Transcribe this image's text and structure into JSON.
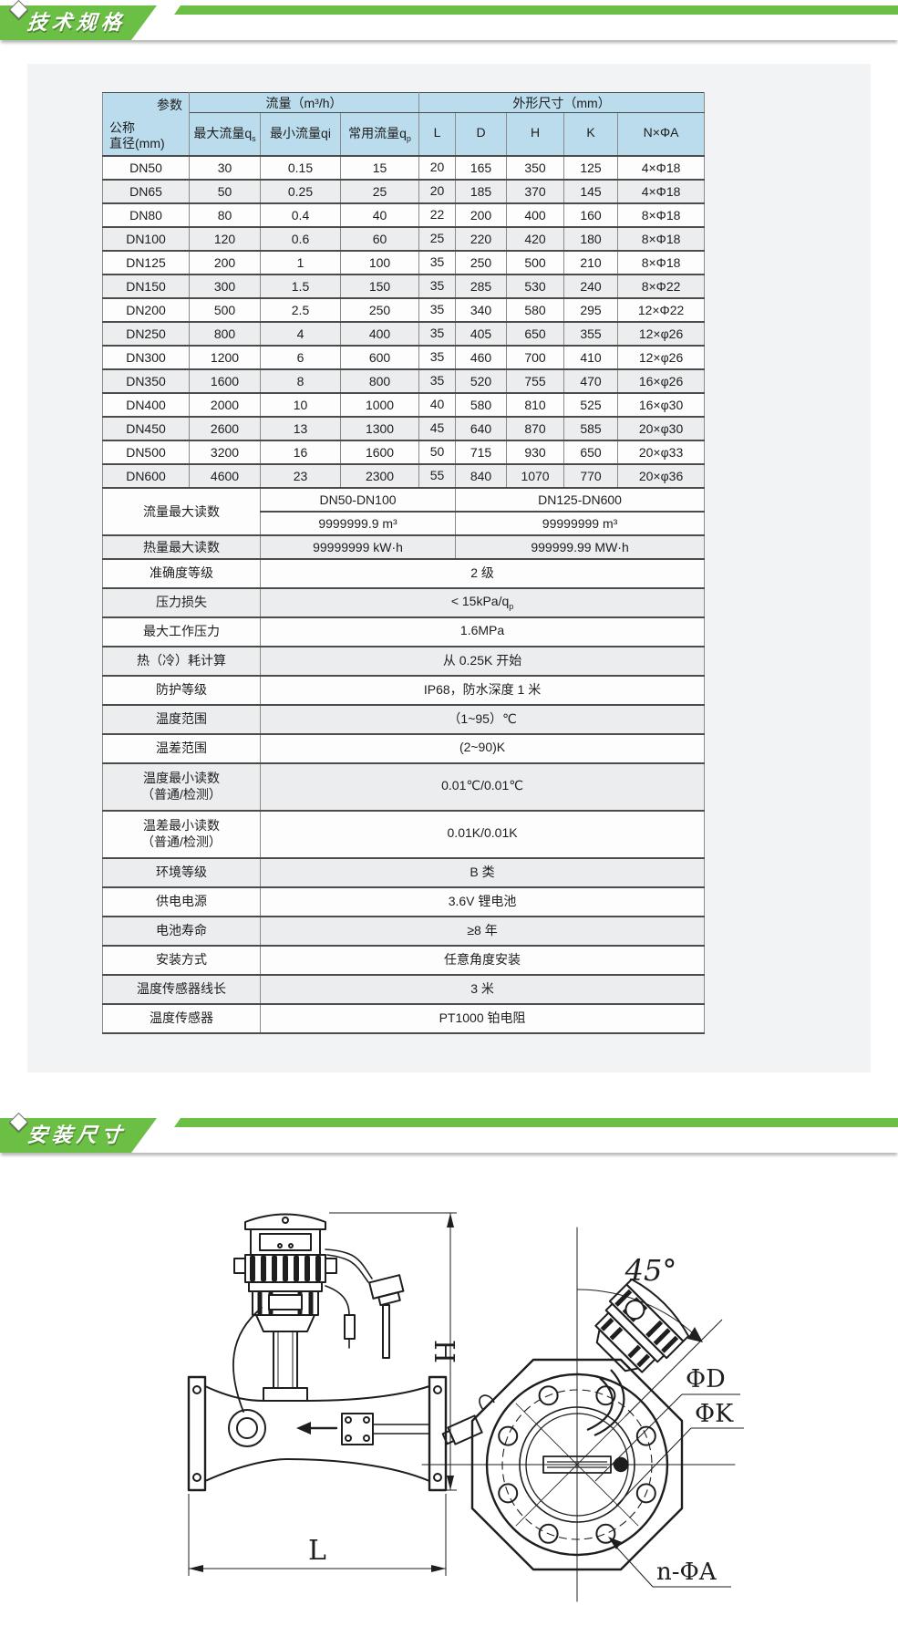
{
  "banners": {
    "tech_title": "技术规格",
    "install_title": "安装尺寸"
  },
  "colors": {
    "banner_green": "#6cbf45",
    "header_blue": "#badced",
    "card_gray": "#f2f3f4",
    "row_alt": "#ebedee"
  },
  "spec_table": {
    "corner_top": "参数",
    "corner_bottom_line1": "公称",
    "corner_bottom_line2": "直径(mm)",
    "group_flow": "流量（m³/h）",
    "group_dims": "外形尺寸（mm）",
    "sub_headers": [
      {
        "main": "最大流量q",
        "sub": "s"
      },
      {
        "main": "最小流量qi",
        "sub": ""
      },
      {
        "main": "常用流量q",
        "sub": "p"
      },
      {
        "main": "L",
        "sub": ""
      },
      {
        "main": "D",
        "sub": ""
      },
      {
        "main": "H",
        "sub": ""
      },
      {
        "main": "K",
        "sub": ""
      },
      {
        "main": "N×ΦA",
        "sub": ""
      }
    ],
    "dimension_rows": [
      [
        "DN50",
        "30",
        "0.15",
        "15",
        "20",
        "165",
        "350",
        "125",
        "4×Φ18"
      ],
      [
        "DN65",
        "50",
        "0.25",
        "25",
        "20",
        "185",
        "370",
        "145",
        "4×Φ18"
      ],
      [
        "DN80",
        "80",
        "0.4",
        "40",
        "22",
        "200",
        "400",
        "160",
        "8×Φ18"
      ],
      [
        "DN100",
        "120",
        "0.6",
        "60",
        "25",
        "220",
        "420",
        "180",
        "8×Φ18"
      ],
      [
        "DN125",
        "200",
        "1",
        "100",
        "35",
        "250",
        "500",
        "210",
        "8×Φ18"
      ],
      [
        "DN150",
        "300",
        "1.5",
        "150",
        "35",
        "285",
        "530",
        "240",
        "8×Φ22"
      ],
      [
        "DN200",
        "500",
        "2.5",
        "250",
        "35",
        "340",
        "580",
        "295",
        "12×Φ22"
      ],
      [
        "DN250",
        "800",
        "4",
        "400",
        "35",
        "405",
        "650",
        "355",
        "12×φ26"
      ],
      [
        "DN300",
        "1200",
        "6",
        "600",
        "35",
        "460",
        "700",
        "410",
        "12×φ26"
      ],
      [
        "DN350",
        "1600",
        "8",
        "800",
        "35",
        "520",
        "755",
        "470",
        "16×φ26"
      ],
      [
        "DN400",
        "2000",
        "10",
        "1000",
        "40",
        "580",
        "810",
        "525",
        "16×φ30"
      ],
      [
        "DN450",
        "2600",
        "13",
        "1300",
        "45",
        "640",
        "870",
        "585",
        "20×φ30"
      ],
      [
        "DN500",
        "3200",
        "16",
        "1600",
        "50",
        "715",
        "930",
        "650",
        "20×φ33"
      ],
      [
        "DN600",
        "4600",
        "23",
        "2300",
        "55",
        "840",
        "1070",
        "770",
        "20×φ36"
      ]
    ],
    "flow_max_reading": {
      "label": "流量最大读数",
      "range_a": "DN50-DN100",
      "range_b": "DN125-DN600",
      "value_a": "9999999.9 m³",
      "value_b": "99999999 m³"
    },
    "heat_max_reading": {
      "label": "热量最大读数",
      "value_a": "99999999 kW·h",
      "value_b": "999999.99 MW·h"
    },
    "spec_rows": [
      {
        "label": "准确度等级",
        "label2": "",
        "value": "2 级",
        "value_sub": ""
      },
      {
        "label": "压力损失",
        "label2": "",
        "value": "< 15kPa/q",
        "value_sub": "p"
      },
      {
        "label": "最大工作压力",
        "label2": "",
        "value": "1.6MPa",
        "value_sub": ""
      },
      {
        "label": "热（冷）耗计算",
        "label2": "",
        "value": "从 0.25K 开始",
        "value_sub": ""
      },
      {
        "label": "防护等级",
        "label2": "",
        "value": "IP68，防水深度 1 米",
        "value_sub": ""
      },
      {
        "label": "温度范围",
        "label2": "",
        "value": "（1~95）℃",
        "value_sub": ""
      },
      {
        "label": "温差范围",
        "label2": "",
        "value": "(2~90)K",
        "value_sub": ""
      },
      {
        "label": "温度最小读数",
        "label2": "（普通/检测）",
        "value": "0.01℃/0.01℃",
        "value_sub": ""
      },
      {
        "label": "温差最小读数",
        "label2": "（普通/检测）",
        "value": "0.01K/0.01K",
        "value_sub": ""
      },
      {
        "label": "环境等级",
        "label2": "",
        "value": "B 类",
        "value_sub": ""
      },
      {
        "label": "供电电源",
        "label2": "",
        "value": "3.6V 锂电池",
        "value_sub": ""
      },
      {
        "label": "电池寿命",
        "label2": "",
        "value": "≥8 年",
        "value_sub": ""
      },
      {
        "label": "安装方式",
        "label2": "",
        "value": "任意角度安装",
        "value_sub": ""
      },
      {
        "label": "温度传感器线长",
        "label2": "",
        "value": "3 米",
        "value_sub": ""
      },
      {
        "label": "温度传感器",
        "label2": "",
        "value": "PT1000 铂电阻",
        "value_sub": ""
      }
    ]
  },
  "drawings": {
    "front_view": {
      "h_label": "H",
      "l_label": "L"
    },
    "side_view": {
      "angle_label": "45°",
      "phi_d_label": "ΦD",
      "phi_k_label": "ΦK",
      "bolt_label": "n-ΦA"
    }
  }
}
